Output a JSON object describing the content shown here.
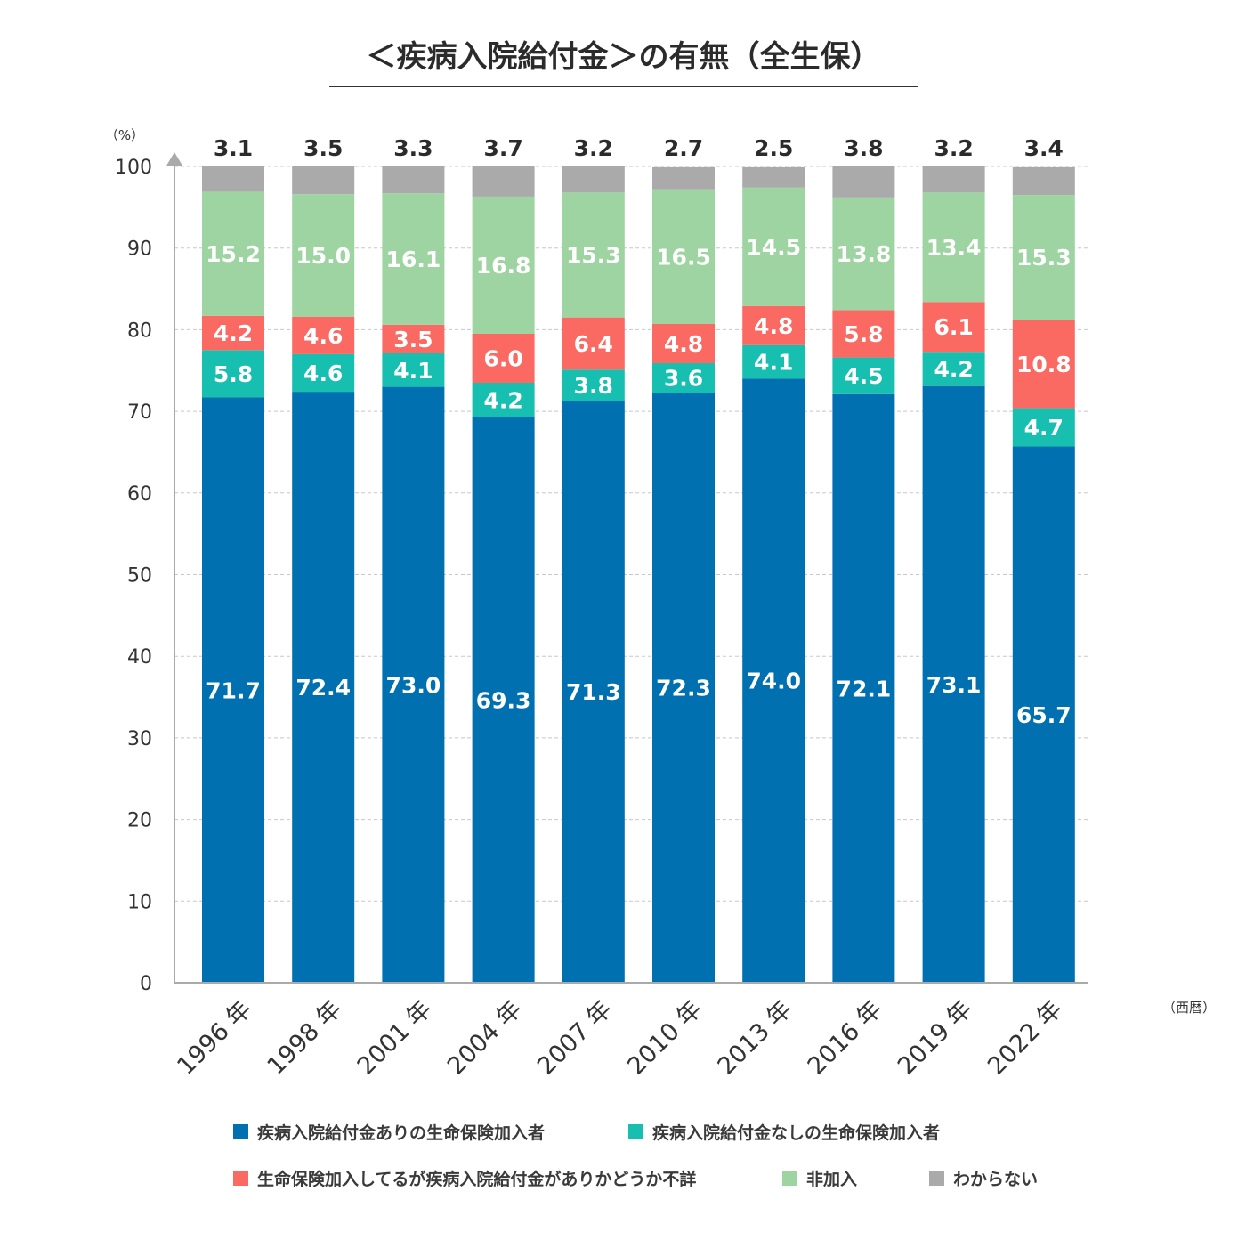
{
  "title": "＜疾病入院給付金＞の有無（全生保）",
  "colors": {
    "with_benefit": "#0070b0",
    "without_benefit": "#17bfb0",
    "unknown_benefit": "#fa6a63",
    "not_enrolled": "#9ed4a1",
    "dont_know": "#aaaaaa"
  },
  "legend": [
    {
      "key": "with_benefit",
      "label": "疾病入院給付金ありの生命保険加入者"
    },
    {
      "key": "without_benefit",
      "label": "疾病入院給付金なしの生命保険加入者"
    },
    {
      "key": "unknown_benefit",
      "label": "生命保険加入してるが疾病入院給付金がありかどうか不詳"
    },
    {
      "key": "not_enrolled",
      "label": "非加入"
    },
    {
      "key": "dont_know",
      "label": "わからない"
    }
  ],
  "chart_data": {
    "type": "bar",
    "stacked": true,
    "title": "＜疾病入院給付金＞の有無（全生保）",
    "ylabel": "（%）",
    "xlabel": "（西暦）",
    "ylim": [
      0,
      100
    ],
    "yticks": [
      0,
      10,
      20,
      30,
      40,
      50,
      60,
      70,
      80,
      90,
      100
    ],
    "grid": true,
    "legend_position": "bottom",
    "categories": [
      "1996 年",
      "1998 年",
      "2001 年",
      "2004 年",
      "2007 年",
      "2010 年",
      "2013 年",
      "2016 年",
      "2019 年",
      "2022 年"
    ],
    "series": [
      {
        "key": "with_benefit",
        "name": "疾病入院給付金ありの生命保険加入者",
        "values": [
          71.7,
          72.4,
          73.0,
          69.3,
          71.3,
          72.3,
          74.0,
          72.1,
          73.1,
          65.7
        ]
      },
      {
        "key": "without_benefit",
        "name": "疾病入院給付金なしの生命保険加入者",
        "values": [
          5.8,
          4.6,
          4.1,
          4.2,
          3.8,
          3.6,
          4.1,
          4.5,
          4.2,
          4.7
        ]
      },
      {
        "key": "unknown_benefit",
        "name": "生命保険加入してるが疾病入院給付金がありかどうか不詳",
        "values": [
          4.2,
          4.6,
          3.5,
          6.0,
          6.4,
          4.8,
          4.8,
          5.8,
          6.1,
          10.8
        ]
      },
      {
        "key": "not_enrolled",
        "name": "非加入",
        "values": [
          15.2,
          15.0,
          16.1,
          16.8,
          15.3,
          16.5,
          14.5,
          13.8,
          13.4,
          15.3
        ]
      },
      {
        "key": "dont_know",
        "name": "わからない",
        "values": [
          3.1,
          3.5,
          3.3,
          3.7,
          3.2,
          2.7,
          2.5,
          3.8,
          3.2,
          3.4
        ]
      }
    ]
  }
}
